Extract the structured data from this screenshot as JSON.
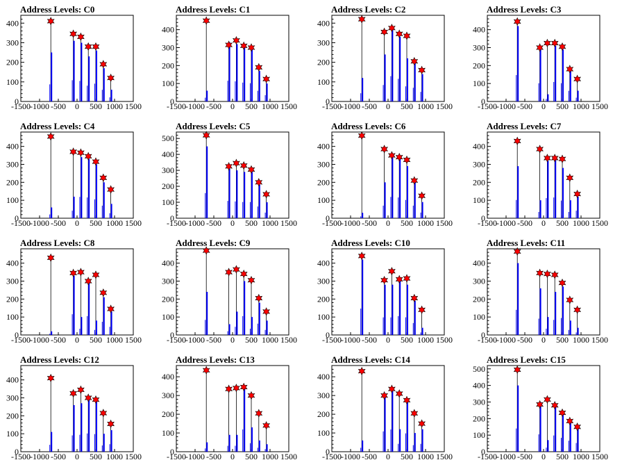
{
  "layout": {
    "cols": 4,
    "rows": 4
  },
  "chart_data": [
    {
      "type": "bar",
      "title": "Address Levels: C0",
      "xlim": [
        -1500,
        1500
      ],
      "ylim": [
        0,
        440
      ],
      "xticks": [
        -1500,
        -1000,
        -500,
        0,
        500,
        1000,
        1500
      ],
      "yticks": [
        0,
        100,
        200,
        300,
        400
      ],
      "x": [
        -700,
        -100,
        100,
        300,
        500,
        700,
        900
      ],
      "peaks": [
        250,
        310,
        300,
        230,
        260,
        170,
        60
      ],
      "markers": [
        410,
        345,
        330,
        280,
        280,
        190,
        120
      ]
    },
    {
      "type": "bar",
      "title": "Address Levels: C1",
      "xlim": [
        -1500,
        1500
      ],
      "ylim": [
        0,
        480
      ],
      "xticks": [
        -1500,
        -1000,
        -500,
        0,
        500,
        1000,
        1500
      ],
      "yticks": [
        0,
        100,
        200,
        300,
        400
      ],
      "x": [
        -700,
        -100,
        100,
        300,
        500,
        700,
        900
      ],
      "peaks": [
        60,
        330,
        320,
        300,
        290,
        170,
        100
      ],
      "markers": [
        450,
        315,
        340,
        310,
        300,
        190,
        125
      ]
    },
    {
      "type": "bar",
      "title": "Address Levels: C2",
      "xlim": [
        -1500,
        1500
      ],
      "ylim": [
        0,
        440
      ],
      "xticks": [
        -1500,
        -1000,
        -500,
        0,
        500,
        1000,
        1500
      ],
      "yticks": [
        0,
        100,
        200,
        300,
        400
      ],
      "x": [
        -700,
        -100,
        100,
        300,
        500,
        700,
        900
      ],
      "peaks": [
        120,
        240,
        370,
        330,
        220,
        200,
        140
      ],
      "markers": [
        420,
        355,
        375,
        345,
        335,
        205,
        160
      ]
    },
    {
      "type": "bar",
      "title": "Address Levels: C3",
      "xlim": [
        -1500,
        1500
      ],
      "ylim": [
        0,
        480
      ],
      "xticks": [
        -1500,
        -1000,
        -500,
        0,
        500,
        1000,
        1500
      ],
      "yticks": [
        0,
        100,
        200,
        300,
        400
      ],
      "x": [
        -700,
        -100,
        100,
        300,
        500,
        700,
        900
      ],
      "peaks": [
        420,
        290,
        40,
        310,
        290,
        170,
        60
      ],
      "markers": [
        445,
        300,
        325,
        325,
        305,
        180,
        125
      ]
    },
    {
      "type": "bar",
      "title": "Address Levels: C4",
      "xlim": [
        -1500,
        1500
      ],
      "ylim": [
        0,
        480
      ],
      "xticks": [
        -1500,
        -1000,
        -500,
        0,
        500,
        1000,
        1500
      ],
      "yticks": [
        0,
        100,
        200,
        300,
        400
      ],
      "x": [
        -700,
        -100,
        100,
        300,
        500,
        700,
        900
      ],
      "peaks": [
        60,
        120,
        340,
        330,
        300,
        200,
        80
      ],
      "markers": [
        455,
        370,
        365,
        345,
        315,
        225,
        160
      ]
    },
    {
      "type": "bar",
      "title": "Address Levels: C5",
      "xlim": [
        -1500,
        1500
      ],
      "ylim": [
        0,
        540
      ],
      "xticks": [
        -1500,
        -1000,
        -500,
        0,
        500,
        1000,
        1500
      ],
      "yticks": [
        0,
        100,
        200,
        300,
        400,
        500
      ],
      "x": [
        -700,
        -100,
        100,
        300,
        500,
        700,
        900
      ],
      "peaks": [
        450,
        310,
        300,
        290,
        290,
        210,
        100
      ],
      "markers": [
        520,
        325,
        345,
        330,
        305,
        225,
        150
      ]
    },
    {
      "type": "bar",
      "title": "Address Levels: C6",
      "xlim": [
        -1500,
        1500
      ],
      "ylim": [
        0,
        480
      ],
      "xticks": [
        -1500,
        -1000,
        -500,
        0,
        500,
        1000,
        1500
      ],
      "yticks": [
        0,
        100,
        200,
        300,
        400
      ],
      "x": [
        -700,
        -100,
        100,
        300,
        500,
        700,
        900
      ],
      "peaks": [
        30,
        200,
        340,
        330,
        290,
        200,
        90
      ],
      "markers": [
        460,
        385,
        350,
        340,
        325,
        210,
        125
      ]
    },
    {
      "type": "bar",
      "title": "Address Levels: C7",
      "xlim": [
        -1500,
        1500
      ],
      "ylim": [
        0,
        480
      ],
      "xticks": [
        -1500,
        -1000,
        -500,
        0,
        500,
        1000,
        1500
      ],
      "yticks": [
        0,
        100,
        200,
        300,
        400
      ],
      "x": [
        -700,
        -100,
        100,
        300,
        500,
        700,
        900
      ],
      "peaks": [
        290,
        100,
        320,
        330,
        280,
        100,
        120
      ],
      "markers": [
        430,
        385,
        335,
        335,
        330,
        225,
        135
      ]
    },
    {
      "type": "bar",
      "title": "Address Levels: C8",
      "xlim": [
        -1500,
        1500
      ],
      "ylim": [
        0,
        480
      ],
      "xticks": [
        -1500,
        -1000,
        -500,
        0,
        500,
        1000,
        1500
      ],
      "yticks": [
        0,
        100,
        200,
        300,
        400
      ],
      "x": [
        -700,
        -100,
        100,
        300,
        500,
        700,
        900
      ],
      "peaks": [
        20,
        330,
        100,
        300,
        80,
        210,
        130
      ],
      "markers": [
        430,
        345,
        350,
        300,
        335,
        235,
        145
      ]
    },
    {
      "type": "bar",
      "title": "Address Levels: C9",
      "xlim": [
        -1500,
        1500
      ],
      "ylim": [
        0,
        480
      ],
      "xticks": [
        -1500,
        -1000,
        -500,
        0,
        500,
        1000,
        1500
      ],
      "yticks": [
        0,
        100,
        200,
        300,
        400
      ],
      "x": [
        -700,
        -100,
        100,
        300,
        500,
        700,
        900
      ],
      "peaks": [
        240,
        60,
        130,
        300,
        100,
        180,
        80
      ],
      "markers": [
        470,
        350,
        365,
        340,
        305,
        205,
        130
      ]
    },
    {
      "type": "bar",
      "title": "Address Levels: C10",
      "xlim": [
        -1500,
        1500
      ],
      "ylim": [
        0,
        480
      ],
      "xticks": [
        -1500,
        -1000,
        -500,
        0,
        500,
        1000,
        1500
      ],
      "yticks": [
        0,
        100,
        200,
        300,
        400
      ],
      "x": [
        -700,
        -100,
        100,
        300,
        500,
        700,
        900
      ],
      "peaks": [
        420,
        280,
        280,
        300,
        280,
        190,
        40
      ],
      "markers": [
        440,
        305,
        355,
        310,
        315,
        205,
        140
      ]
    },
    {
      "type": "bar",
      "title": "Address Levels: C11",
      "xlim": [
        -1500,
        1500
      ],
      "ylim": [
        0,
        480
      ],
      "xticks": [
        -1500,
        -1000,
        -500,
        0,
        500,
        1000,
        1500
      ],
      "yticks": [
        0,
        100,
        200,
        300,
        400
      ],
      "x": [
        -700,
        -100,
        100,
        300,
        500,
        700,
        900
      ],
      "peaks": [
        400,
        260,
        100,
        240,
        270,
        80,
        40
      ],
      "markers": [
        465,
        345,
        340,
        335,
        290,
        195,
        140
      ]
    },
    {
      "type": "bar",
      "title": "Address Levels: C12",
      "xlim": [
        -1500,
        1500
      ],
      "ylim": [
        0,
        480
      ],
      "xticks": [
        -1500,
        -1000,
        -500,
        0,
        500,
        1000,
        1500
      ],
      "yticks": [
        0,
        100,
        200,
        300,
        400
      ],
      "x": [
        -700,
        -100,
        100,
        300,
        500,
        700,
        900
      ],
      "peaks": [
        110,
        260,
        270,
        290,
        280,
        100,
        120
      ],
      "markers": [
        410,
        325,
        345,
        300,
        290,
        215,
        155
      ]
    },
    {
      "type": "bar",
      "title": "Address Levels: C13",
      "xlim": [
        -1500,
        1500
      ],
      "ylim": [
        0,
        460
      ],
      "xticks": [
        -1500,
        -1000,
        -500,
        0,
        500,
        1000,
        1500
      ],
      "yticks": [
        0,
        100,
        200,
        300,
        400
      ],
      "x": [
        -700,
        -100,
        100,
        300,
        500,
        700,
        900
      ],
      "peaks": [
        50,
        90,
        90,
        340,
        130,
        60,
        40
      ],
      "markers": [
        435,
        335,
        340,
        345,
        300,
        205,
        140
      ]
    },
    {
      "type": "bar",
      "title": "Address Levels: C14",
      "xlim": [
        -1500,
        1500
      ],
      "ylim": [
        0,
        460
      ],
      "xticks": [
        -1500,
        -1000,
        -500,
        0,
        500,
        1000,
        1500
      ],
      "yticks": [
        0,
        100,
        200,
        300,
        400
      ],
      "x": [
        -700,
        -100,
        100,
        300,
        500,
        700,
        900
      ],
      "peaks": [
        60,
        310,
        340,
        120,
        280,
        100,
        120
      ],
      "markers": [
        430,
        300,
        335,
        310,
        275,
        205,
        150
      ]
    },
    {
      "type": "bar",
      "title": "Address Levels: C15",
      "xlim": [
        -1500,
        1500
      ],
      "ylim": [
        0,
        520
      ],
      "xticks": [
        -1500,
        -1000,
        -500,
        0,
        500,
        1000,
        1500
      ],
      "yticks": [
        0,
        100,
        200,
        300,
        400,
        500
      ],
      "x": [
        -700,
        -100,
        100,
        300,
        500,
        700,
        900
      ],
      "peaks": [
        400,
        300,
        70,
        280,
        240,
        190,
        150
      ],
      "markers": [
        495,
        285,
        315,
        280,
        235,
        185,
        150
      ]
    }
  ]
}
